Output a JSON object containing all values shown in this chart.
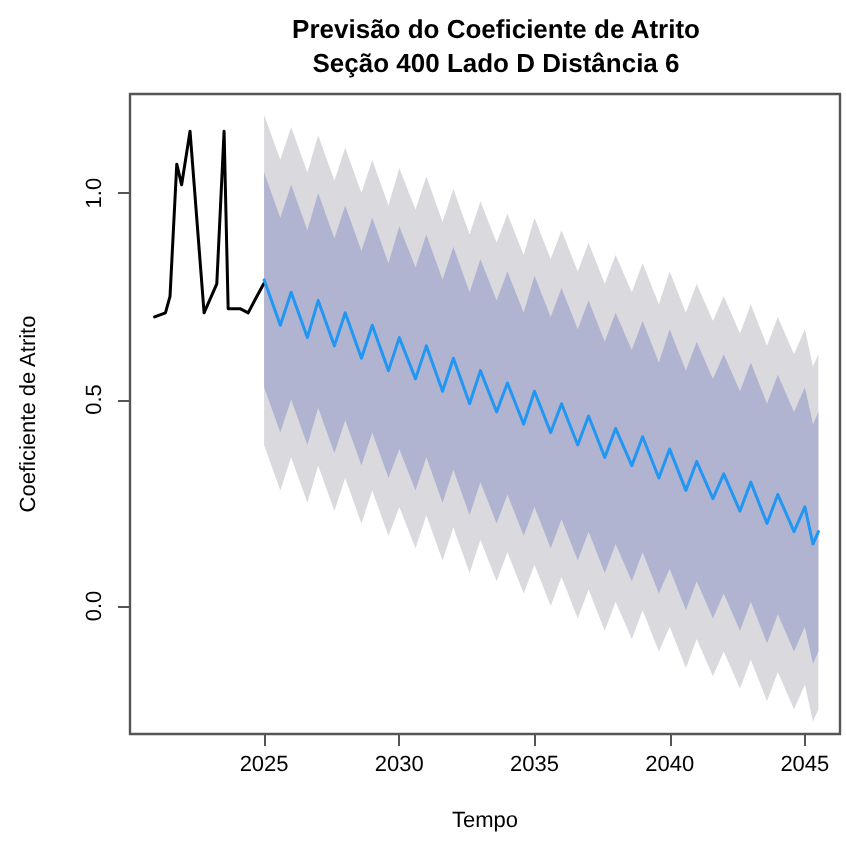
{
  "chart_data": {
    "type": "line",
    "title": "Previsão do Coeficiente de Atrito",
    "subtitle": "Seção 400 Lado D Distância 6",
    "xlabel": "Tempo",
    "ylabel": "Coeficiente de Atrito",
    "xlim": [
      2020.04,
      2046.3
    ],
    "xticks": [
      2025,
      2030,
      2035,
      2040,
      2045
    ],
    "ylim": [
      -0.31,
      1.24
    ],
    "yticks": [
      {
        "value": 0,
        "label": "0.0"
      },
      {
        "value": 0.5,
        "label": "0.5"
      },
      {
        "value": 1,
        "label": "1.0"
      }
    ],
    "grid": false,
    "marker": "none",
    "line_style": "solid",
    "series": [
      {
        "color": "#000000",
        "x": [
          2020.95,
          2021.35,
          2021.52,
          2021.77,
          2021.95,
          2022.26,
          2022.78,
          2023.25,
          2023.52,
          2023.67,
          2024.11,
          2024.41,
          2024.65,
          2024.98
        ],
        "values": [
          0.7,
          0.71,
          0.75,
          1.07,
          1.02,
          1.15,
          0.71,
          0.78,
          1.15,
          0.72,
          0.72,
          0.71,
          0.74,
          0.78
        ]
      },
      {
        "color": "#d9d9de",
        "x": [
          2025,
          2025.6,
          2026,
          2026.6,
          2027,
          2027.6,
          2028,
          2028.6,
          2029,
          2029.6,
          2030,
          2030.6,
          2031,
          2031.6,
          2032,
          2032.6,
          2033,
          2033.6,
          2034,
          2034.6,
          2035,
          2035.6,
          2036,
          2036.6,
          2037,
          2037.6,
          2038,
          2038.6,
          2039,
          2039.6,
          2040,
          2040.6,
          2041,
          2041.6,
          2042,
          2042.6,
          2043,
          2043.6,
          2044,
          2044.6,
          2045,
          2045.3,
          2045.5
        ],
        "values": [
          null,
          null,
          null,
          null,
          null,
          null,
          null,
          null,
          null,
          null,
          null,
          null,
          null,
          null,
          null,
          null,
          null,
          null,
          null,
          null,
          null,
          null,
          null,
          null,
          null,
          null,
          null,
          null,
          null,
          null,
          null,
          null,
          null,
          null,
          null,
          null,
          null,
          null,
          null,
          null,
          null,
          null,
          null
        ],
        "lower": [
          0.39,
          0.28,
          0.36,
          0.25,
          0.34,
          0.23,
          0.31,
          0.2,
          0.28,
          0.17,
          0.24,
          0.14,
          0.22,
          0.11,
          0.19,
          0.08,
          0.16,
          0.06,
          0.13,
          0.03,
          0.1,
          0.0,
          0.07,
          -0.03,
          0.04,
          -0.06,
          0.01,
          -0.08,
          -0.01,
          -0.11,
          -0.05,
          -0.15,
          -0.08,
          -0.17,
          -0.11,
          -0.2,
          -0.13,
          -0.23,
          -0.16,
          -0.25,
          -0.19,
          -0.28,
          -0.25
        ],
        "upper": [
          1.19,
          1.08,
          1.16,
          1.05,
          1.14,
          1.03,
          1.11,
          1.0,
          1.08,
          0.97,
          1.06,
          0.96,
          1.04,
          0.93,
          1.01,
          0.9,
          0.98,
          0.88,
          0.95,
          0.85,
          0.94,
          0.84,
          0.91,
          0.81,
          0.88,
          0.78,
          0.85,
          0.76,
          0.83,
          0.73,
          0.81,
          0.71,
          0.78,
          0.69,
          0.75,
          0.66,
          0.73,
          0.63,
          0.7,
          0.61,
          0.67,
          0.58,
          0.61
        ]
      },
      {
        "color": "#b1b4d0",
        "x": [
          2025,
          2025.6,
          2026,
          2026.6,
          2027,
          2027.6,
          2028,
          2028.6,
          2029,
          2029.6,
          2030,
          2030.6,
          2031,
          2031.6,
          2032,
          2032.6,
          2033,
          2033.6,
          2034,
          2034.6,
          2035,
          2035.6,
          2036,
          2036.6,
          2037,
          2037.6,
          2038,
          2038.6,
          2039,
          2039.6,
          2040,
          2040.6,
          2041,
          2041.6,
          2042,
          2042.6,
          2043,
          2043.6,
          2044,
          2044.6,
          2045,
          2045.3,
          2045.5
        ],
        "values": [
          null,
          null,
          null,
          null,
          null,
          null,
          null,
          null,
          null,
          null,
          null,
          null,
          null,
          null,
          null,
          null,
          null,
          null,
          null,
          null,
          null,
          null,
          null,
          null,
          null,
          null,
          null,
          null,
          null,
          null,
          null,
          null,
          null,
          null,
          null,
          null,
          null,
          null,
          null,
          null,
          null,
          null,
          null
        ],
        "lower": [
          0.53,
          0.42,
          0.5,
          0.39,
          0.48,
          0.37,
          0.45,
          0.34,
          0.42,
          0.31,
          0.38,
          0.28,
          0.36,
          0.25,
          0.33,
          0.22,
          0.3,
          0.2,
          0.27,
          0.17,
          0.24,
          0.14,
          0.21,
          0.11,
          0.18,
          0.08,
          0.15,
          0.06,
          0.13,
          0.03,
          0.09,
          -0.01,
          0.06,
          -0.03,
          0.03,
          -0.06,
          0.01,
          -0.09,
          -0.02,
          -0.11,
          -0.05,
          -0.14,
          -0.11
        ],
        "upper": [
          1.05,
          0.94,
          1.02,
          0.91,
          1.0,
          0.89,
          0.97,
          0.86,
          0.94,
          0.83,
          0.92,
          0.82,
          0.9,
          0.79,
          0.87,
          0.76,
          0.84,
          0.74,
          0.81,
          0.71,
          0.8,
          0.7,
          0.77,
          0.67,
          0.74,
          0.64,
          0.71,
          0.62,
          0.69,
          0.59,
          0.67,
          0.57,
          0.64,
          0.55,
          0.61,
          0.52,
          0.59,
          0.49,
          0.56,
          0.47,
          0.53,
          0.44,
          0.47
        ]
      },
      {
        "color": "#2196f3",
        "x": [
          2025,
          2025.6,
          2026,
          2026.6,
          2027,
          2027.6,
          2028,
          2028.6,
          2029,
          2029.6,
          2030,
          2030.6,
          2031,
          2031.6,
          2032,
          2032.6,
          2033,
          2033.6,
          2034,
          2034.6,
          2035,
          2035.6,
          2036,
          2036.6,
          2037,
          2037.6,
          2038,
          2038.6,
          2039,
          2039.6,
          2040,
          2040.6,
          2041,
          2041.6,
          2042,
          2042.6,
          2043,
          2043.6,
          2044,
          2044.6,
          2045,
          2045.3,
          2045.5
        ],
        "values": [
          0.79,
          0.68,
          0.76,
          0.65,
          0.74,
          0.63,
          0.71,
          0.6,
          0.68,
          0.57,
          0.65,
          0.55,
          0.63,
          0.52,
          0.6,
          0.49,
          0.57,
          0.47,
          0.54,
          0.44,
          0.52,
          0.42,
          0.49,
          0.39,
          0.46,
          0.36,
          0.43,
          0.34,
          0.41,
          0.31,
          0.38,
          0.28,
          0.35,
          0.26,
          0.32,
          0.23,
          0.3,
          0.2,
          0.27,
          0.18,
          0.24,
          0.15,
          0.18
        ]
      }
    ]
  }
}
